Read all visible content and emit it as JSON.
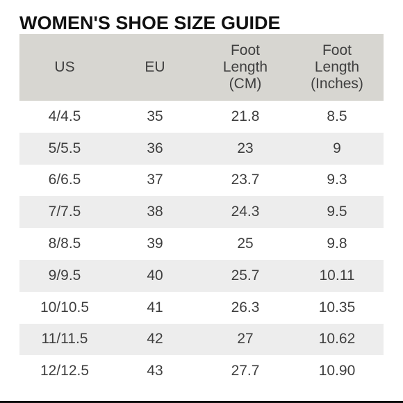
{
  "title": "WOMEN'S SHOE SIZE GUIDE",
  "table": {
    "headers": [
      "US",
      "EU",
      "Foot Length (CM)",
      "Foot Length (Inches)"
    ],
    "header_lines": [
      [
        "US"
      ],
      [
        "EU"
      ],
      [
        "Foot",
        "Length",
        "(CM)"
      ],
      [
        "Foot",
        "Length",
        "(Inches)"
      ]
    ],
    "rows": [
      [
        "4/4.5",
        "35",
        "21.8",
        "8.5"
      ],
      [
        "5/5.5",
        "36",
        "23",
        "9"
      ],
      [
        "6/6.5",
        "37",
        "23.7",
        "9.3"
      ],
      [
        "7/7.5",
        "38",
        "24.3",
        "9.5"
      ],
      [
        "8/8.5",
        "39",
        "25",
        "9.8"
      ],
      [
        "9/9.5",
        "40",
        "25.7",
        "10.11"
      ],
      [
        "10/10.5",
        "41",
        "26.3",
        "10.35"
      ],
      [
        "11/11.5",
        "42",
        "27",
        "10.62"
      ],
      [
        "12/12.5",
        "43",
        "27.7",
        "10.90"
      ]
    ]
  },
  "colors": {
    "header_background": "#d7d6d1",
    "stripe_background": "#ededed",
    "text": "#3f3f3f",
    "title_text": "#111111"
  }
}
